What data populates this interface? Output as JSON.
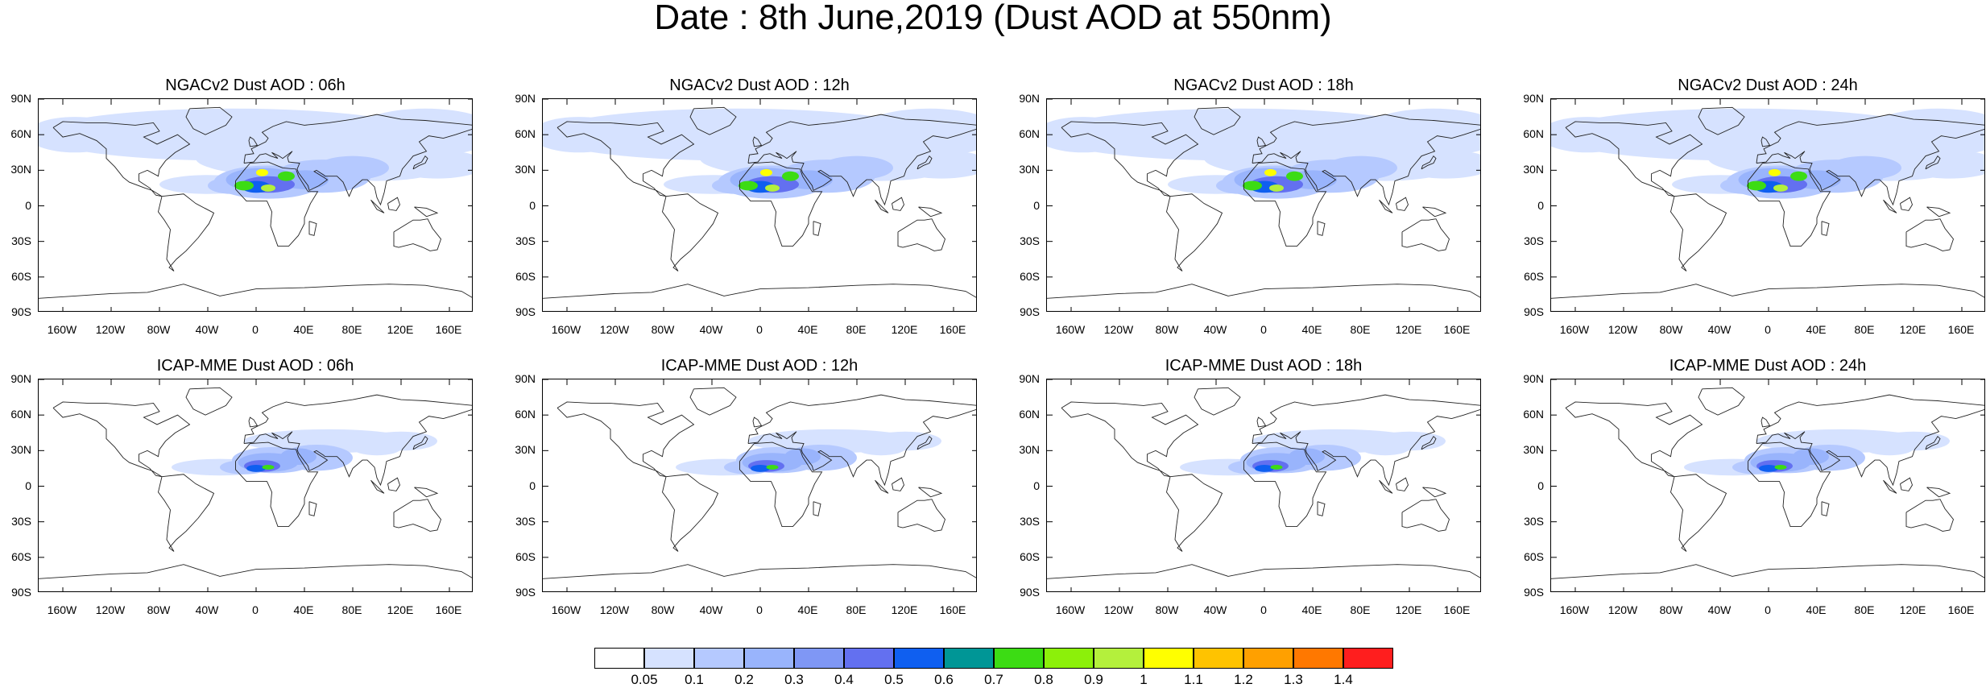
{
  "title": "Date : 8th June,2019 (Dust AOD at 550nm)",
  "panels": [
    {
      "title": "NGACv2 Dust AOD : 06h",
      "model": "NGACv2",
      "hour": "06h"
    },
    {
      "title": "NGACv2 Dust AOD : 12h",
      "model": "NGACv2",
      "hour": "12h"
    },
    {
      "title": "NGACv2 Dust AOD : 18h",
      "model": "NGACv2",
      "hour": "18h"
    },
    {
      "title": "NGACv2 Dust AOD : 24h",
      "model": "NGACv2",
      "hour": "24h"
    },
    {
      "title": "ICAP-MME Dust AOD : 06h",
      "model": "ICAP-MME",
      "hour": "06h"
    },
    {
      "title": "ICAP-MME Dust AOD : 12h",
      "model": "ICAP-MME",
      "hour": "12h"
    },
    {
      "title": "ICAP-MME Dust AOD : 18h",
      "model": "ICAP-MME",
      "hour": "18h"
    },
    {
      "title": "ICAP-MME Dust AOD : 24h",
      "model": "ICAP-MME",
      "hour": "24h"
    }
  ],
  "lat_ticks": [
    "90N",
    "60N",
    "30N",
    "0",
    "30S",
    "60S",
    "90S"
  ],
  "lon_ticks": [
    "160W",
    "120W",
    "80W",
    "40W",
    "0",
    "40E",
    "80E",
    "120E",
    "160E"
  ],
  "lon_tick_values": [
    -160,
    -120,
    -80,
    -40,
    0,
    40,
    80,
    120,
    160
  ],
  "lat_tick_values": [
    90,
    60,
    30,
    0,
    -30,
    -60,
    -90
  ],
  "colorbar": {
    "levels": [
      "0.05",
      "0.1",
      "0.2",
      "0.3",
      "0.4",
      "0.5",
      "0.6",
      "0.7",
      "0.8",
      "0.9",
      "1",
      "1.1",
      "1.2",
      "1.3",
      "1.4"
    ],
    "colors": [
      "#ffffff",
      "#d6e2ff",
      "#b5c9ff",
      "#99b4fc",
      "#7f97f5",
      "#6370f0",
      "#0f5ff0",
      "#009696",
      "#3cdc14",
      "#8cf00a",
      "#b4f03c",
      "#ffff00",
      "#ffc300",
      "#ffa000",
      "#ff7800",
      "#ff1e1e"
    ]
  }
}
